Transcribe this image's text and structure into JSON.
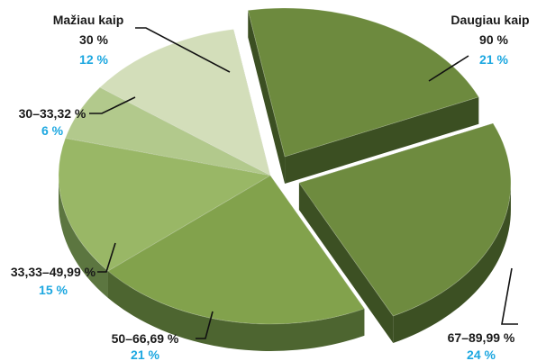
{
  "chart_data": {
    "type": "pie",
    "title": "",
    "legend": "none",
    "slices": [
      {
        "label": "Daugiau kaip",
        "sublabel": "90 %",
        "value": 21,
        "value_label": "21 %",
        "top": "#6d8a3e",
        "side": "#3b4f22",
        "exploded": true
      },
      {
        "label": "67–89,99 %",
        "sublabel": "",
        "value": 24,
        "value_label": "24 %",
        "top": "#6e8b3f",
        "side": "#3c5023",
        "exploded": true
      },
      {
        "label": "50–66,69 %",
        "sublabel": "",
        "value": 21,
        "value_label": "21 %",
        "top": "#82a24c",
        "side": "#4d6530",
        "exploded": false
      },
      {
        "label": "33,33–49,99 %",
        "sublabel": "",
        "value": 15,
        "value_label": "15 %",
        "top": "#99b766",
        "side": "#5c7640",
        "exploded": false
      },
      {
        "label": "30–33,32 %",
        "sublabel": "",
        "value": 6,
        "value_label": "6 %",
        "top": "#b2c98c",
        "side": "#6b8050",
        "exploded": false
      },
      {
        "label": "Mažiau kaip",
        "sublabel": "30 %",
        "value": 12,
        "value_label": "12 %",
        "top": "#d3deba",
        "side": "#8b9878",
        "exploded": false
      }
    ]
  }
}
